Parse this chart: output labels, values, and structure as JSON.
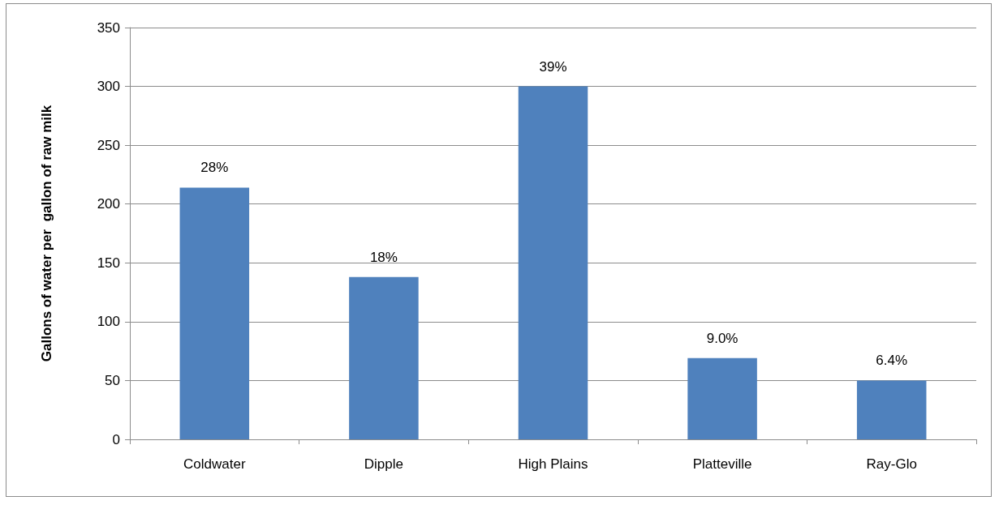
{
  "chart_data": {
    "type": "bar",
    "ylabel": "Gallons of water per  gallon of raw milk",
    "categories": [
      "Coldwater",
      "Dipple",
      "High Plains",
      "Platteville",
      "Ray-Glo"
    ],
    "values": [
      214,
      138,
      300,
      69,
      50
    ],
    "color": "#4f81bd",
    "annotations": [
      {
        "text": "28%",
        "x": "Coldwater",
        "y": 214
      },
      {
        "text": "18%",
        "x": "Dipple",
        "y": 138
      },
      {
        "text": "39%",
        "x": "High Plains",
        "y": 300
      },
      {
        "text": "9.0%",
        "x": "Platteville",
        "y": 69
      },
      {
        "text": "6.4%",
        "x": "Ray-Glo",
        "y": 50
      }
    ],
    "ylim": [
      0,
      350
    ],
    "yticks": [
      0,
      50,
      100,
      150,
      200,
      250,
      300,
      350
    ],
    "grid": "y"
  }
}
